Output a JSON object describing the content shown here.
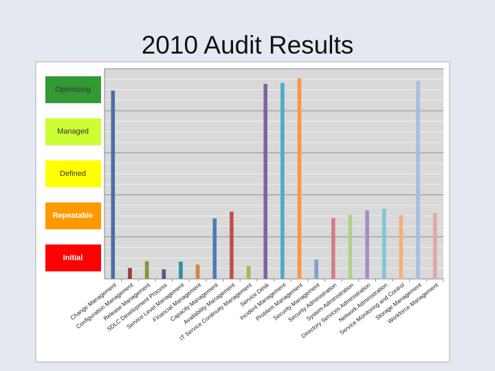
{
  "chart_data": {
    "type": "bar",
    "title": "2010 Audit Results",
    "levels": [
      {
        "label": "Initial",
        "color": "#ff0000"
      },
      {
        "label": "Repeatable",
        "color": "#ff9900"
      },
      {
        "label": "Defined",
        "color": "#ffff00"
      },
      {
        "label": "Managed",
        "color": "#ccff33"
      },
      {
        "label": "Optimizing",
        "color": "#339933"
      }
    ],
    "categories": [
      "Change Management",
      "Configuration Management",
      "Release Management",
      "SDLC Development Process",
      "Service Level Management",
      "Financial Management",
      "Capacity Management",
      "Availability Management",
      "IT Service Continuity Management",
      "Service Desk",
      "Incident Management",
      "Problem Management",
      "Security Management",
      "Security Administration",
      "System Administration",
      "Directory Services Administration",
      "Network Administration",
      "Service Monitoring and Control",
      "Storage Management",
      "Workforce Management"
    ],
    "values": [
      4.48,
      0.26,
      0.42,
      0.23,
      0.41,
      0.34,
      1.44,
      1.6,
      0.31,
      4.64,
      4.66,
      4.77,
      0.46,
      1.45,
      1.52,
      1.63,
      1.67,
      1.52,
      4.71,
      1.57
    ],
    "colors": [
      "#4a6fa5",
      "#a33a3a",
      "#7a9a3e",
      "#6a4f8c",
      "#2f8fa0",
      "#d6843a",
      "#4f7bb8",
      "#c0504d",
      "#9bbb59",
      "#7e64a0",
      "#4bacc6",
      "#f79646",
      "#7f9fd0",
      "#d08080",
      "#b3cf85",
      "#a48fc4",
      "#7fc5d8",
      "#f4b07a",
      "#a8bde0",
      "#e0a8a8"
    ],
    "ylim": [
      0,
      5
    ],
    "yticks": [
      0,
      1,
      2,
      3,
      4,
      5
    ],
    "grid": true
  }
}
